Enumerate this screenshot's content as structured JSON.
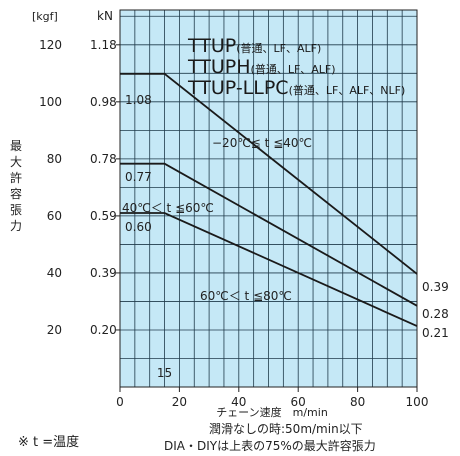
{
  "chart_data": {
    "type": "line",
    "title_lines": [
      {
        "main": "TTUP",
        "sub": "(普通、LF、ALF)"
      },
      {
        "main": "TTUPH",
        "sub": "(普通、LF、ALF)"
      },
      {
        "main": "TTUP-LLPC",
        "sub": "(普通、LF、ALF、NLF)"
      }
    ],
    "xlabel": "チェーン速度　m/min",
    "ylabel": "最大許容張力",
    "y_unit_left": "[kgf]",
    "y_unit_right": "kN",
    "xlim": [
      0,
      100
    ],
    "ylim_kN": [
      0,
      1.3
    ],
    "x_ticks": [
      "0",
      "20",
      "40",
      "60",
      "80",
      "100"
    ],
    "x_tick_values": [
      0,
      20,
      40,
      60,
      80,
      100
    ],
    "extra_x_tick": {
      "value": 15,
      "label": "15"
    },
    "kgf_ticks": [
      "20",
      "40",
      "60",
      "80",
      "100",
      "120"
    ],
    "kgf_tick_values": [
      20,
      40,
      60,
      80,
      100,
      120
    ],
    "kN_ticks": [
      "0.20",
      "0.39",
      "0.59",
      "0.78",
      "0.98",
      "1.18"
    ],
    "kN_tick_values": [
      0.2,
      0.39,
      0.59,
      0.78,
      0.98,
      1.18
    ],
    "series": [
      {
        "name": "−20℃≦ t ≦40℃",
        "x": [
          0,
          15,
          100
        ],
        "y": [
          1.08,
          1.08,
          0.39
        ],
        "start_label": "1.08",
        "end_label": "0.39"
      },
      {
        "name": "40℃＜ t ≦60℃",
        "x": [
          0,
          15,
          100
        ],
        "y": [
          0.77,
          0.77,
          0.28
        ],
        "start_label": "0.77",
        "end_label": "0.28"
      },
      {
        "name": "60℃＜ t ≦80℃",
        "x": [
          0,
          15,
          100
        ],
        "y": [
          0.6,
          0.6,
          0.21
        ],
        "start_label": "0.60",
        "end_label": "0.21"
      }
    ],
    "grid": true,
    "colors": {
      "plot_bg": "#c5e8f6",
      "grid": "#1f3a4a",
      "line": "#1a1a1a"
    }
  },
  "notes": {
    "temp_note": "※ t =温度",
    "lubrication_note": "潤滑なしの時:50m/min以下",
    "dia_note": "DIA・DIYは上表の75%の最大許容張力"
  }
}
